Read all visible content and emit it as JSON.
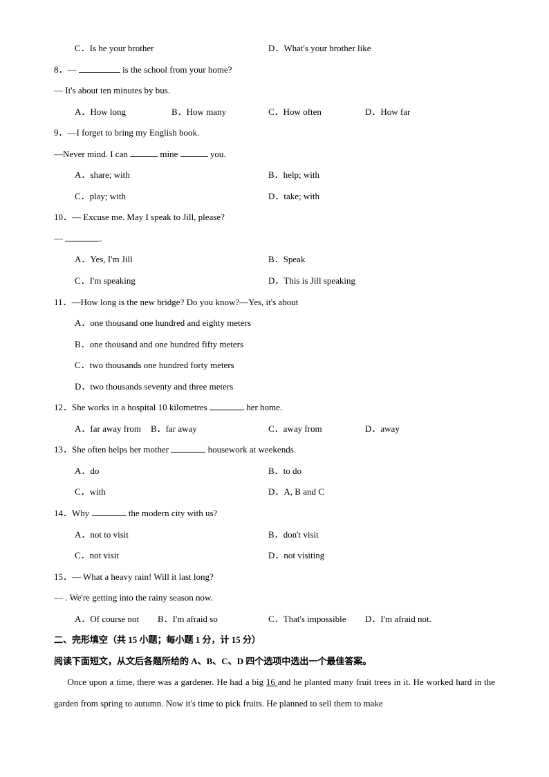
{
  "q7": {
    "optC": "C．Is he your brother",
    "optD": "D．What's your brother like"
  },
  "q8": {
    "stem1a": "8．— ",
    "stem1b": " is the school from your home?",
    "stem2": "— It's about ten minutes by bus.",
    "optA": "A．How long",
    "optB": "B．How many",
    "optC": "C．How often",
    "optD": "D．How far"
  },
  "q9": {
    "stem1": "9．—I forget to bring my English book.",
    "stem2a": "—Never mind. I can ",
    "stem2b": " mine ",
    "stem2c": " you.",
    "optA": "A．share; with",
    "optB": "B．help; with",
    "optC": "C．play; with",
    "optD": "D．take; with"
  },
  "q10": {
    "stem1": "10．— Excuse me. May I speak to Jill, please?",
    "stem2a": "— ",
    "stem2b": ".",
    "optA": "A．Yes, I'm Jill",
    "optB": "B．Speak",
    "optC": "C．I'm speaking",
    "optD": "D．This is Jill speaking"
  },
  "q11": {
    "stem": "11．—How long is the new bridge? Do you know?—Yes, it's about ",
    "optA": "A．one thousand one hundred and eighty meters",
    "optB": "B．one thousand and one hundred fifty meters",
    "optC": "C．two thousands one hundred forty meters",
    "optD": "D．two thousands seventy and three meters"
  },
  "q12": {
    "stem1a": "12．She works in a hospital 10 kilometres ",
    "stem1b": " her home.",
    "optA": "A．far away from",
    "optB": "B．far away",
    "optC": "C．away from",
    "optD": "D．away"
  },
  "q13": {
    "stem1a": "13．She often helps her mother ",
    "stem1b": " housework at weekends.",
    "optA": "A．do",
    "optB": "B．to do",
    "optC": "C．with",
    "optD": "D．A, B and C"
  },
  "q14": {
    "stem1a": "14．Why ",
    "stem1b": " the modern city with us?",
    "optA": "A．not to visit",
    "optB": "B．don't visit",
    "optC": "C．not visit",
    "optD": "D．not visiting"
  },
  "q15": {
    "stem1": "15．— What a heavy rain! Will it last long?",
    "stem2": "— . We're getting into the rainy season now.",
    "optA": "A．Of course not",
    "optB": "B．I'm afraid so",
    "optC": "C．That's impossible",
    "optD": "D．I'm afraid not."
  },
  "section2": {
    "title": "二、完形填空（共 15 小题；每小题 1 分，计 15 分）",
    "instruction": "阅读下面短文，从文后各题所给的 A、B、C、D 四个选项中选出一个最佳答案。",
    "passage_a": "Once upon a time, there was a gardener. He had a big ",
    "blank16": "    16    ",
    "passage_b": " and he planted many fruit trees in it. He worked hard in the garden from spring to autumn. Now it's time to pick fruits. He planned to sell them to make"
  }
}
